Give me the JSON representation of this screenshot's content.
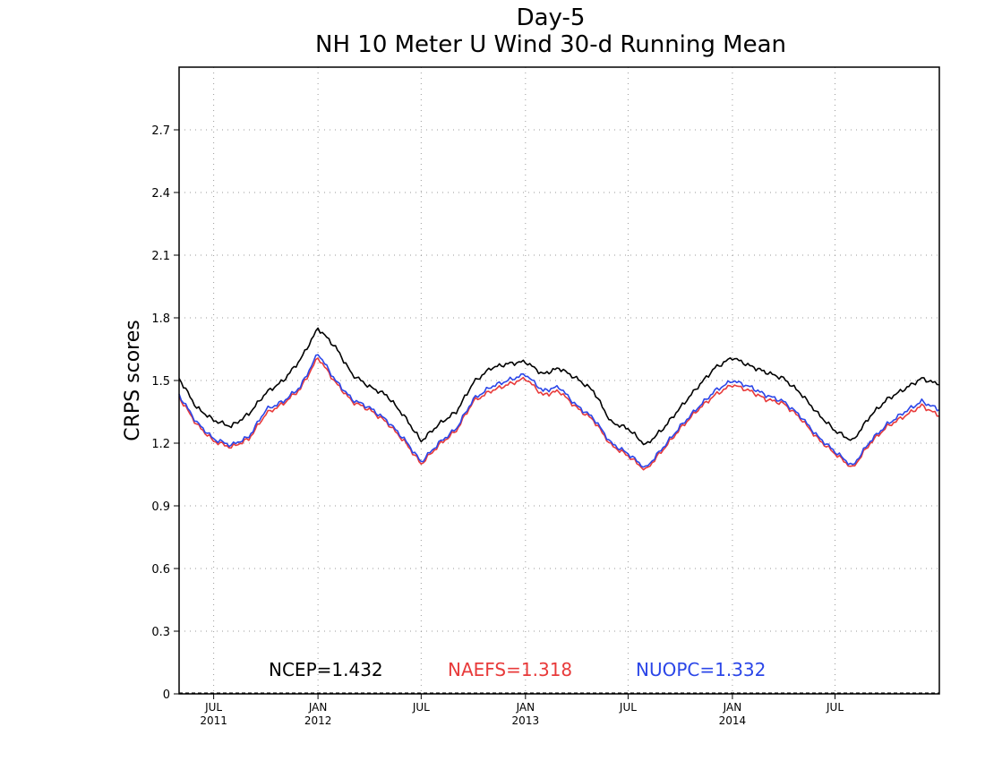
{
  "chart_data": {
    "type": "line",
    "title": "Day-5",
    "subtitle": "NH 10 Meter U Wind 30-d Running Mean",
    "xlabel": "",
    "ylabel": "CRPS scores",
    "ylim": [
      0,
      3.0
    ],
    "xlim": [
      "2011-05-01",
      "2015-01-01"
    ],
    "grid": true,
    "yticks": [
      "0",
      "0.3",
      "0.6",
      "0.9",
      "1.2",
      "1.5",
      "1.8",
      "2.1",
      "2.4",
      "2.7"
    ],
    "y_tick_values": [
      0,
      0.3,
      0.6,
      0.9,
      1.2,
      1.5,
      1.8,
      2.1,
      2.4,
      2.7
    ],
    "xticks": [
      {
        "date": "2011-07-01",
        "label": "JUL",
        "year": "2011"
      },
      {
        "date": "2012-01-01",
        "label": "JAN",
        "year": "2012"
      },
      {
        "date": "2012-07-01",
        "label": "JUL",
        "year": ""
      },
      {
        "date": "2013-01-01",
        "label": "JAN",
        "year": "2013"
      },
      {
        "date": "2013-07-01",
        "label": "JUL",
        "year": ""
      },
      {
        "date": "2014-01-01",
        "label": "JAN",
        "year": "2014"
      },
      {
        "date": "2014-07-01",
        "label": "JUL",
        "year": ""
      }
    ],
    "x": [
      "2011-05-01",
      "2011-06-01",
      "2011-07-01",
      "2011-08-01",
      "2011-09-01",
      "2011-10-01",
      "2011-11-01",
      "2011-12-01",
      "2012-01-01",
      "2012-02-01",
      "2012-03-01",
      "2012-04-01",
      "2012-05-01",
      "2012-06-01",
      "2012-07-01",
      "2012-08-01",
      "2012-09-01",
      "2012-10-01",
      "2012-11-01",
      "2012-12-01",
      "2013-01-01",
      "2013-02-01",
      "2013-03-01",
      "2013-04-01",
      "2013-05-01",
      "2013-06-01",
      "2013-07-01",
      "2013-08-01",
      "2013-09-01",
      "2013-10-01",
      "2013-11-01",
      "2013-12-01",
      "2014-01-01",
      "2014-02-01",
      "2014-03-01",
      "2014-04-01",
      "2014-05-01",
      "2014-06-01",
      "2014-07-01",
      "2014-08-01",
      "2014-09-01",
      "2014-10-01",
      "2014-11-01",
      "2014-12-01",
      "2015-01-01"
    ],
    "series": [
      {
        "name": "NCEP",
        "color": "#000000",
        "values": [
          1.51,
          1.37,
          1.31,
          1.28,
          1.34,
          1.44,
          1.5,
          1.6,
          1.75,
          1.66,
          1.53,
          1.47,
          1.43,
          1.33,
          1.21,
          1.29,
          1.35,
          1.49,
          1.56,
          1.58,
          1.59,
          1.53,
          1.56,
          1.51,
          1.45,
          1.3,
          1.27,
          1.19,
          1.27,
          1.37,
          1.47,
          1.56,
          1.61,
          1.57,
          1.54,
          1.51,
          1.44,
          1.34,
          1.26,
          1.21,
          1.33,
          1.41,
          1.46,
          1.51,
          1.48
        ]
      },
      {
        "name": "NAEFS",
        "color": "#e83a3a",
        "values": [
          1.42,
          1.29,
          1.21,
          1.18,
          1.22,
          1.34,
          1.39,
          1.46,
          1.61,
          1.49,
          1.4,
          1.36,
          1.3,
          1.21,
          1.1,
          1.19,
          1.26,
          1.4,
          1.45,
          1.48,
          1.51,
          1.43,
          1.45,
          1.37,
          1.31,
          1.19,
          1.14,
          1.07,
          1.17,
          1.27,
          1.36,
          1.43,
          1.48,
          1.45,
          1.41,
          1.39,
          1.32,
          1.22,
          1.15,
          1.08,
          1.2,
          1.28,
          1.33,
          1.38,
          1.33
        ]
      },
      {
        "name": "NUOPC",
        "color": "#2b46e8",
        "values": [
          1.43,
          1.3,
          1.22,
          1.19,
          1.23,
          1.36,
          1.4,
          1.47,
          1.63,
          1.5,
          1.41,
          1.37,
          1.31,
          1.22,
          1.11,
          1.2,
          1.27,
          1.41,
          1.47,
          1.5,
          1.53,
          1.45,
          1.47,
          1.38,
          1.32,
          1.2,
          1.15,
          1.08,
          1.18,
          1.28,
          1.37,
          1.45,
          1.5,
          1.47,
          1.43,
          1.4,
          1.33,
          1.23,
          1.16,
          1.09,
          1.21,
          1.29,
          1.35,
          1.4,
          1.36
        ]
      }
    ],
    "legend": [
      {
        "text": "NCEP=1.432",
        "color": "#000000"
      },
      {
        "text": "NAEFS=1.318",
        "color": "#e83a3a"
      },
      {
        "text": "NUOPC=1.332",
        "color": "#2b46e8"
      }
    ],
    "legend_position": "bottom-inside"
  }
}
